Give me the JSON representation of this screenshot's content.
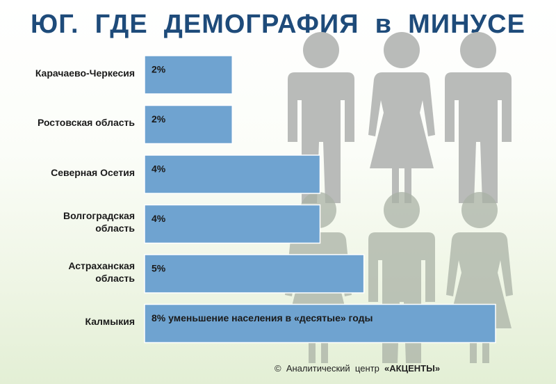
{
  "title": "ЮГ.  ГДЕ  ДЕМОГРАФИЯ  в  МИНУСЕ",
  "footer": {
    "copyright": "©",
    "text": "Аналитический  центр",
    "brand": "«АКЦЕНТЫ»"
  },
  "colors": {
    "bar": "#6fa3d0",
    "bar_border": "#ffffff",
    "title": "#1e4b7a",
    "silhouette": "#b9bbb9"
  },
  "chart_data": {
    "type": "bar",
    "orientation": "horizontal",
    "categories": [
      "Карачаево-Черкесия",
      "Ростовская область",
      "Северная Осетия",
      "Волгоградская\nобласть",
      "Астраханская\nобласть",
      "Калмыкия"
    ],
    "values": [
      2,
      2,
      4,
      4,
      5,
      8
    ],
    "data_labels": [
      "2%",
      "2%",
      "4%",
      "4%",
      "5%",
      "8% уменьшение населения в «десятые» годы"
    ],
    "unit": "%",
    "xlim": [
      0,
      8
    ],
    "grid": false,
    "legend": "none"
  }
}
